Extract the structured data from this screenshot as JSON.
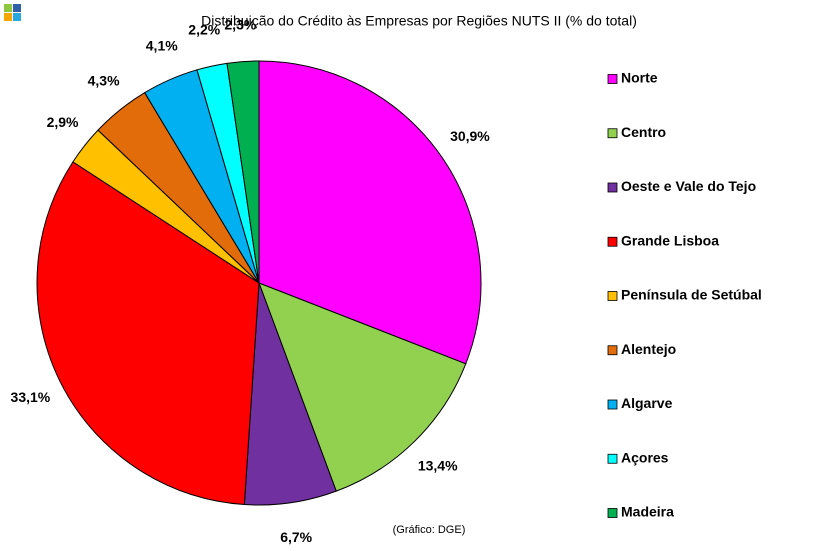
{
  "chart_data": {
    "type": "pie",
    "title": "Distribuição do Crédito às Empresas por Regiões NUTS II (% do total)",
    "source": "(Gráfico: DGE)",
    "categories": [
      "Norte",
      "Centro",
      "Oeste e Vale do Tejo",
      "Grande Lisboa",
      "Península de Setúbal",
      "Alentejo",
      "Algarve",
      "Açores",
      "Madeira"
    ],
    "values": [
      30.9,
      13.4,
      6.7,
      33.1,
      2.9,
      4.3,
      4.1,
      2.2,
      2.3
    ],
    "value_labels": [
      "30,9%",
      "13,4%",
      "6,7%",
      "33,1%",
      "2,9%",
      "4,3%",
      "4,1%",
      "2,2%",
      "2,3%"
    ],
    "colors": [
      "#ff00ff",
      "#92d050",
      "#7030a0",
      "#ff0000",
      "#ffc000",
      "#e26b0a",
      "#00b0f0",
      "#00ffff",
      "#00b050"
    ],
    "legend": "right"
  }
}
